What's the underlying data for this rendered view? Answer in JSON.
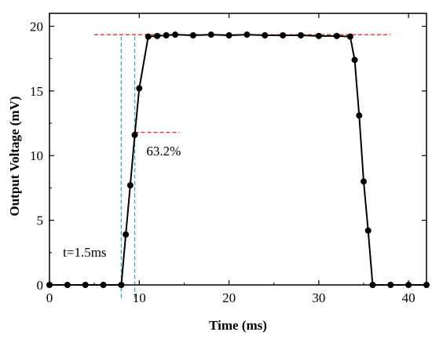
{
  "chart_data": {
    "type": "line",
    "xlabel": "Time (ms)",
    "ylabel": "Output Voltage (mV)",
    "xlim": [
      0,
      42
    ],
    "ylim": [
      0,
      21
    ],
    "xticks": [
      0,
      10,
      20,
      30,
      40
    ],
    "yticks": [
      0,
      5,
      10,
      15,
      20
    ],
    "x": [
      0,
      2,
      4,
      6,
      8,
      8.5,
      9,
      9.5,
      10,
      11,
      12,
      13,
      14,
      16,
      18,
      20,
      22,
      24,
      26,
      28,
      30,
      32,
      33.5,
      34,
      34.5,
      35,
      35.5,
      36,
      38,
      40,
      42
    ],
    "series": [
      {
        "values": [
          0,
          0,
          0,
          0,
          0,
          3.9,
          7.7,
          11.6,
          15.2,
          19.2,
          19.25,
          19.3,
          19.35,
          19.3,
          19.35,
          19.3,
          19.35,
          19.3,
          19.3,
          19.3,
          19.25,
          19.25,
          19.2,
          17.4,
          13.1,
          8.0,
          4.2,
          0,
          0,
          0,
          0
        ],
        "color": "#000000"
      }
    ],
    "reference_lines": [
      {
        "orientation": "horizontal",
        "y": 19.35,
        "x_range": [
          5,
          38
        ],
        "color": "#e0302e",
        "style": "dashed"
      },
      {
        "orientation": "horizontal",
        "y": 11.8,
        "x_range": [
          9.5,
          14.5
        ],
        "color": "#e0302e",
        "style": "dashed"
      },
      {
        "orientation": "vertical",
        "x": 8.0,
        "y_range": [
          -1,
          19.35
        ],
        "color": "#3aa0d8",
        "style": "dashed"
      },
      {
        "orientation": "vertical",
        "x": 9.5,
        "y_range": [
          -1,
          19.35
        ],
        "color": "#3aa0d8",
        "style": "dashed"
      }
    ],
    "annotations": [
      {
        "text": "63.2%",
        "x": 10.8,
        "y": 10.0
      },
      {
        "text": "t=1.5ms",
        "x": 1.5,
        "y": 2.2
      }
    ],
    "grid": false,
    "legend": "none"
  }
}
